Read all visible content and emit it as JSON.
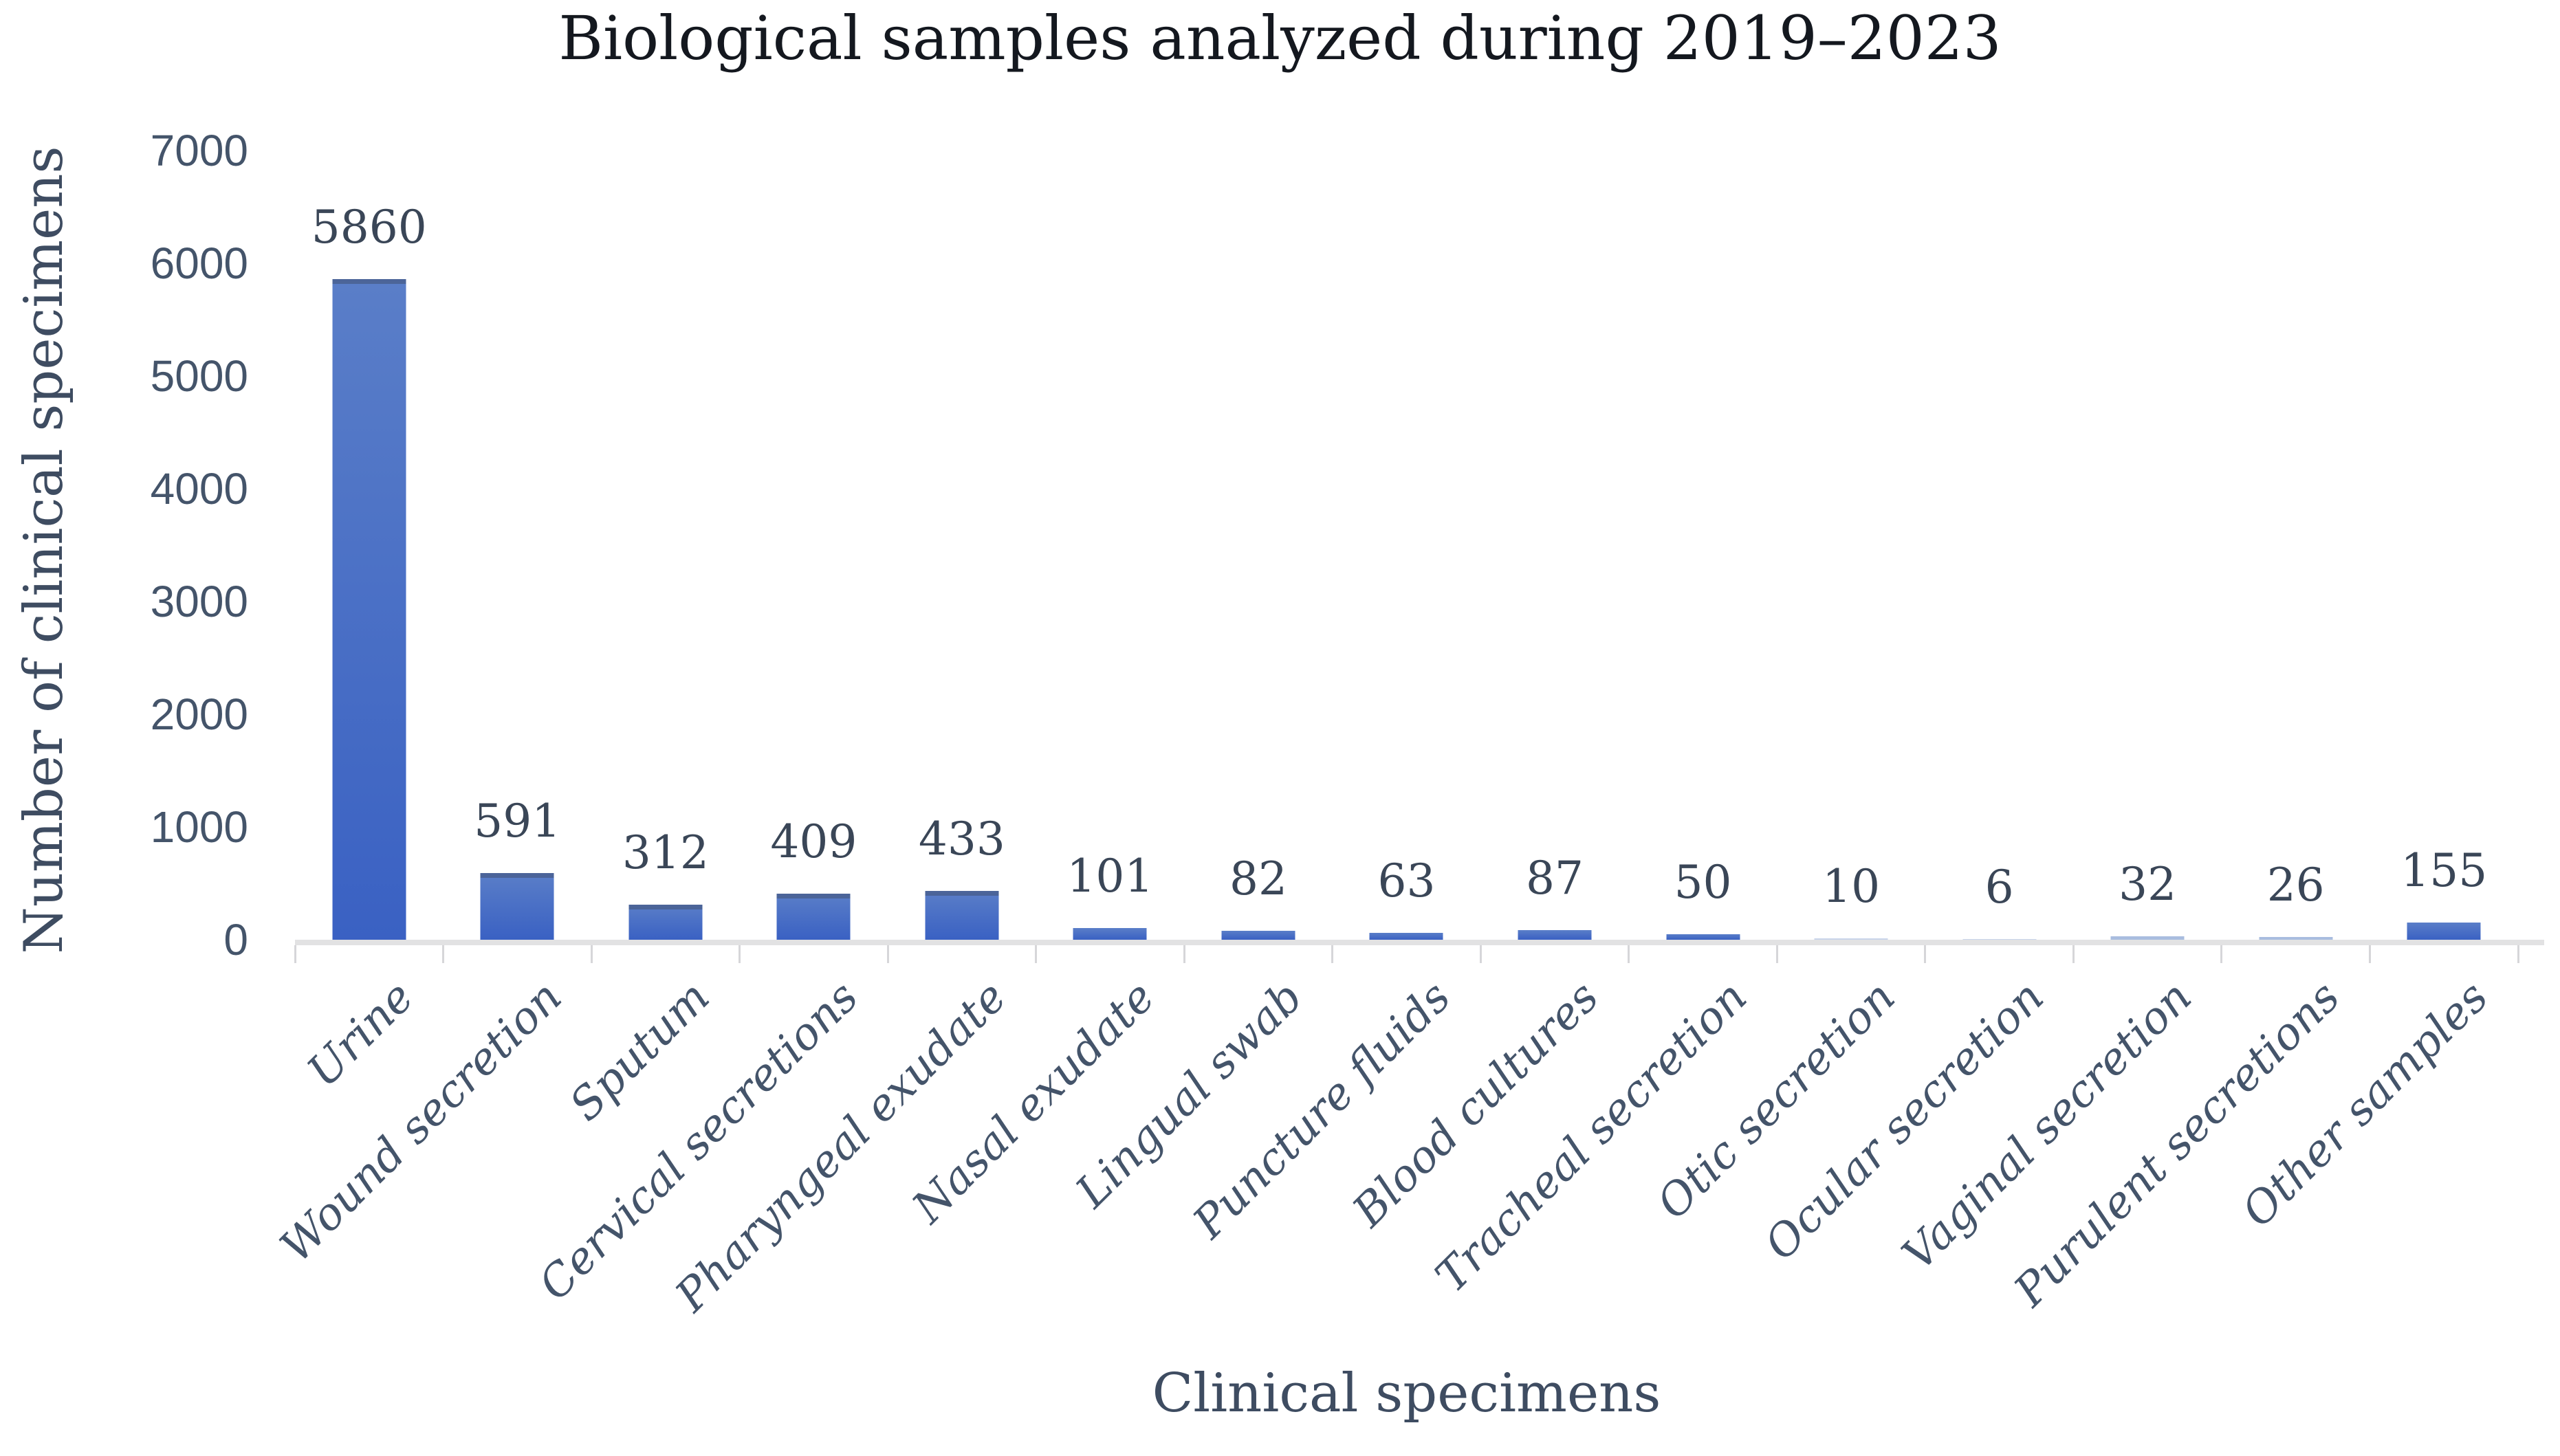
{
  "chart_data": {
    "type": "bar",
    "title": "Biological samples analyzed during 2019–2023",
    "xlabel": "Clinical specimens",
    "ylabel": "Number of clinical specimens",
    "categories": [
      "Urine",
      "Wound secretion",
      "Sputum",
      "Cervical secretions",
      "Pharyngeal exudate",
      "Nasal exudate",
      "Lingual swab",
      "Puncture fluids",
      "Blood cultures",
      "Tracheal secretion",
      "Otic secretion",
      "Ocular secretion",
      "Vaginal secretion",
      "Purulent secretions",
      "Other samples"
    ],
    "values": [
      5860,
      591,
      312,
      409,
      433,
      101,
      82,
      63,
      87,
      50,
      10,
      6,
      32,
      26,
      155
    ],
    "data_labels": [
      "5860",
      "591",
      "312",
      "409",
      "433",
      "101",
      "82",
      "63",
      "87",
      "50",
      "10",
      "6",
      "32",
      "26",
      "155"
    ],
    "ylim": [
      0,
      7000
    ],
    "yticks": [
      "0",
      "1000",
      "2000",
      "3000",
      "4000",
      "5000",
      "6000",
      "7000"
    ],
    "grid": false,
    "legend": false,
    "colors": {
      "bar_gradient_top": "#5a7ec8",
      "bar_gradient_bottom": "#3a61c3",
      "bar_small": "#a9bddf",
      "bar_tiny": "#c9d4ea",
      "bar_cap": "rgba(62,76,106,0.5)",
      "axis_line": "#e2e2e3",
      "tick_mark": "#d6d6d9",
      "tick_label": "#44546a",
      "data_label": "#3a4657",
      "category_label": "#44546a",
      "axis_title": "#3e4c61",
      "title": "#14181f"
    }
  }
}
